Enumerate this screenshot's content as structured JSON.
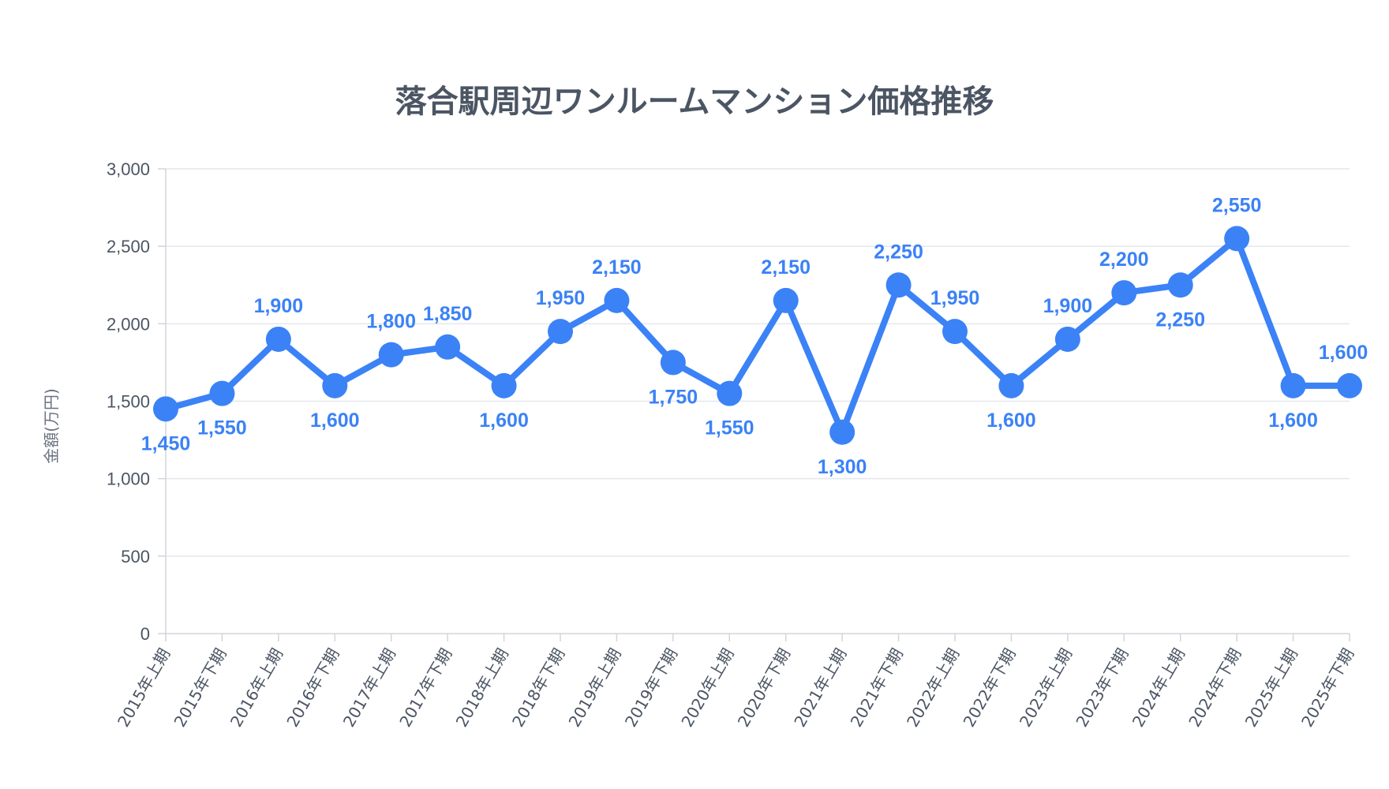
{
  "chart_data": {
    "type": "line",
    "title": "落合駅周辺ワンルームマンション価格推移",
    "ylabel": "金額(万円)",
    "xlabel": "",
    "ylim": [
      0,
      3000
    ],
    "yticks": [
      "0",
      "500",
      "1,000",
      "1,500",
      "2,000",
      "2,500",
      "3,000"
    ],
    "categories": [
      "2015年上期",
      "2015年下期",
      "2016年上期",
      "2016年下期",
      "2017年上期",
      "2017年下期",
      "2018年上期",
      "2018年下期",
      "2019年上期",
      "2019年下期",
      "2020年上期",
      "2020年下期",
      "2021年上期",
      "2021年下期",
      "2022年上期",
      "2022年下期",
      "2023年上期",
      "2023年下期",
      "2024年上期",
      "2024年下期",
      "2025年上期",
      "2025年下期"
    ],
    "values": [
      1450,
      1550,
      1900,
      1600,
      1800,
      1850,
      1600,
      1950,
      2150,
      1750,
      1550,
      2150,
      1300,
      2250,
      1950,
      1600,
      1900,
      2200,
      2250,
      2550,
      1600,
      1600
    ],
    "value_labels": [
      "1,450",
      "1,550",
      "1,900",
      "1,600",
      "1,800",
      "1,850",
      "1,600",
      "1,950",
      "2,150",
      "1,750",
      "1,550",
      "2,150",
      "1,300",
      "2,250",
      "1,950",
      "1,600",
      "1,900",
      "2,200",
      "2,250",
      "2,550",
      "1,600",
      "1,600"
    ],
    "grid": true,
    "series_color": "#3b82f6"
  }
}
